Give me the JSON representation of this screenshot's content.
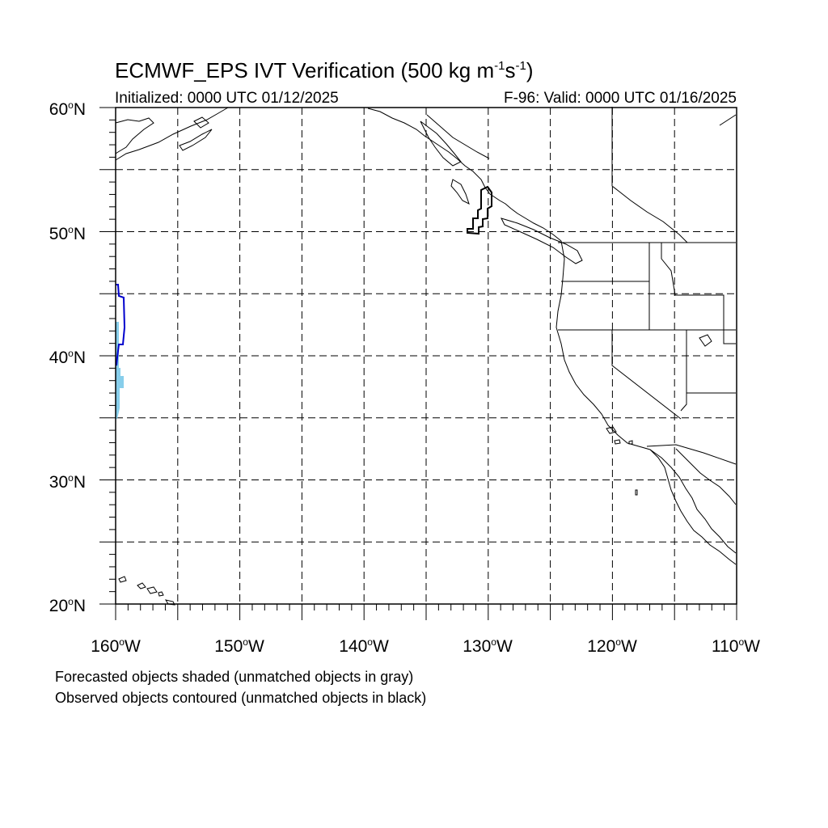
{
  "title": {
    "prefix": "ECMWF_EPS IVT Verification (500 kg m",
    "exp1": "-1",
    "mid": "s",
    "exp2": "-1",
    "suffix": ")"
  },
  "initialized": "Initialized: 0000 UTC 01/12/2025",
  "valid": "F-96: Valid: 0000 UTC 01/16/2025",
  "latitude_labels": [
    {
      "value": "60",
      "hemi": "N"
    },
    {
      "value": "50",
      "hemi": "N"
    },
    {
      "value": "40",
      "hemi": "N"
    },
    {
      "value": "30",
      "hemi": "N"
    },
    {
      "value": "20",
      "hemi": "N"
    }
  ],
  "longitude_labels": [
    {
      "value": "160",
      "hemi": "W"
    },
    {
      "value": "150",
      "hemi": "W"
    },
    {
      "value": "140",
      "hemi": "W"
    },
    {
      "value": "130",
      "hemi": "W"
    },
    {
      "value": "120",
      "hemi": "W"
    },
    {
      "value": "110",
      "hemi": "W"
    }
  ],
  "degree_symbol": "o",
  "notes": [
    "Forecasted objects shaded (unmatched objects in gray)",
    "Observed objects contoured (unmatched objects in black)"
  ],
  "map_extent": {
    "lon": [
      -160,
      -110
    ],
    "lat": [
      20,
      60
    ],
    "grid_spacing_deg": 5
  },
  "colors": {
    "forecast_matched": "#87ceeb",
    "observed_matched": "#0000cd",
    "observed_unmatched": "#000000",
    "coastline": "#000000",
    "gridline": "#000000"
  }
}
